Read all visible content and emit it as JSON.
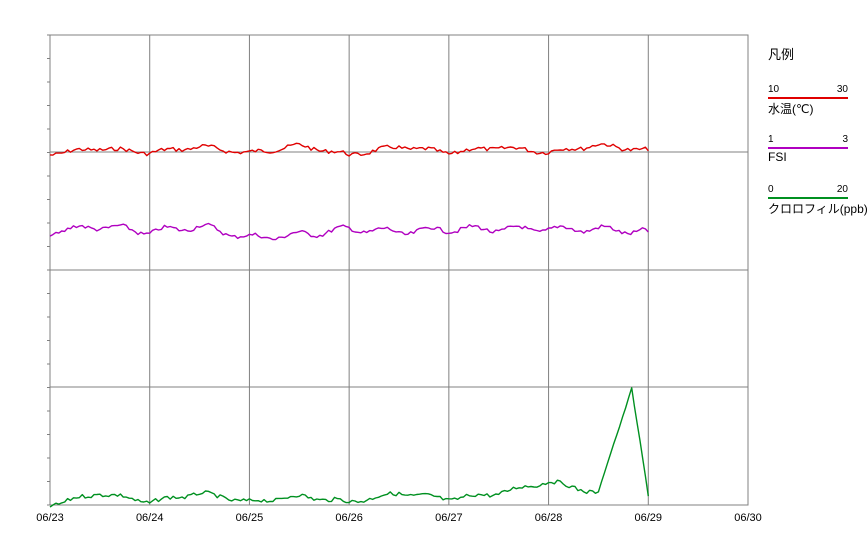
{
  "chart_data": {
    "type": "line",
    "x_ticks": [
      "06/23",
      "06/24",
      "06/25",
      "06/26",
      "06/27",
      "06/28",
      "06/29",
      "06/30"
    ],
    "xlim": [
      "06/23",
      "06/30"
    ],
    "grid": true,
    "legend_position": "right",
    "series": [
      {
        "name": "水温(℃)",
        "color": "#e00000",
        "ylim": [
          10,
          30
        ],
        "x": [
          "06/23",
          "06/23 12:00",
          "06/24",
          "06/24 12:00",
          "06/25",
          "06/25 12:00",
          "06/26",
          "06/26 12:00",
          "06/27",
          "06/27 12:00",
          "06/28",
          "06/28 12:00",
          "06/29"
        ],
        "values": [
          29.7,
          30.6,
          29.9,
          30.9,
          29.8,
          31.1,
          29.5,
          30.9,
          29.9,
          30.8,
          30.0,
          31.2,
          30.2
        ]
      },
      {
        "name": "FSI",
        "color": "#b000c0",
        "ylim": [
          1,
          3
        ],
        "x": [
          "06/23",
          "06/23 12:00",
          "06/24",
          "06/24 12:00",
          "06/25",
          "06/25 12:00",
          "06/26",
          "06/26 12:00",
          "06/27",
          "06/27 12:00",
          "06/28",
          "06/28 12:00",
          "06/29"
        ],
        "values": [
          3.65,
          3.75,
          3.65,
          3.75,
          3.55,
          3.6,
          3.7,
          3.65,
          3.7,
          3.7,
          3.7,
          3.7,
          3.65
        ]
      },
      {
        "name": "クロロフィル(ppb)",
        "color": "#009020",
        "ylim": [
          0,
          20
        ],
        "x": [
          "06/23",
          "06/23 12:00",
          "06/24",
          "06/24 12:00",
          "06/25",
          "06/25 12:00",
          "06/26",
          "06/26 12:00",
          "06/27",
          "06/27 12:00",
          "06/28",
          "06/28 12:00",
          "06/28 20:00",
          "06/29"
        ],
        "values": [
          0,
          2,
          0.5,
          2,
          0.5,
          1.5,
          0.5,
          2,
          1,
          2,
          4,
          2,
          20,
          1.5
        ]
      }
    ]
  },
  "legend": {
    "title": "凡例",
    "items": [
      {
        "min": "10",
        "max": "30",
        "label": "水温(℃)",
        "color": "#e00000"
      },
      {
        "min": "1",
        "max": "3",
        "label": "FSI",
        "color": "#b000c0"
      },
      {
        "min": "0",
        "max": "20",
        "label": "クロロフィル(ppb)",
        "color": "#009020"
      }
    ]
  }
}
